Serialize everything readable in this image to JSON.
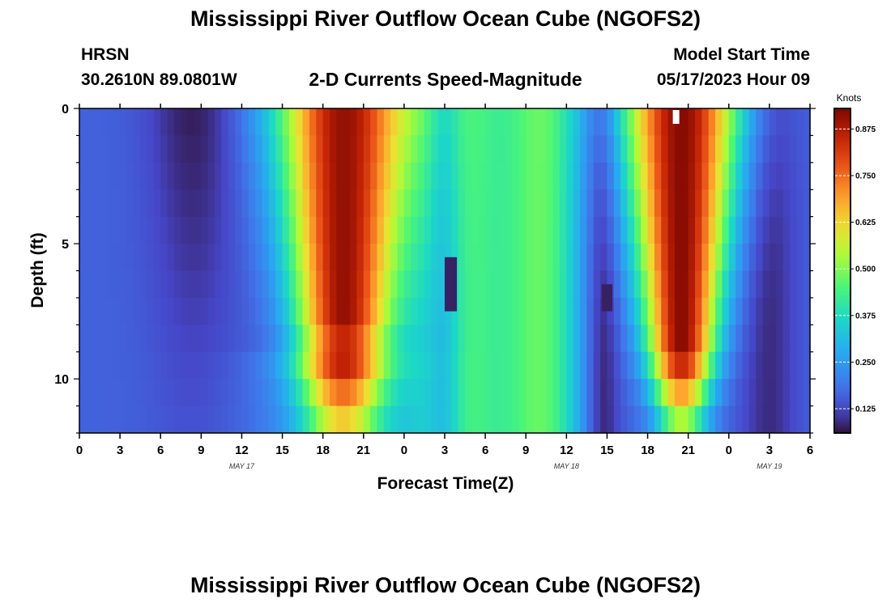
{
  "page": {
    "title": "Mississippi River Outflow Ocean Cube (NGOFS2)",
    "station": "HRSN",
    "coords": "30.2610N  89.0801W",
    "model_start_label": "Model Start Time",
    "model_start_value": "05/17/2023 Hour 09",
    "footer_title": "Mississippi River Outflow Ocean Cube (NGOFS2)"
  },
  "chart_data": {
    "type": "heatmap",
    "title": "2-D Currents Speed-Magnitude",
    "xlabel": "Forecast Time(Z)",
    "ylabel": "Depth (ft)",
    "x_start_hour": 0,
    "x_end_hour": 54,
    "x_tick_labels": [
      "0",
      "3",
      "6",
      "9",
      "12",
      "15",
      "18",
      "21",
      "0",
      "3",
      "6",
      "9",
      "12",
      "15",
      "18",
      "21",
      "0",
      "3",
      "6"
    ],
    "date_labels": [
      {
        "text": "MAY 17",
        "hour": 12
      },
      {
        "text": "MAY 18",
        "hour": 36
      },
      {
        "text": "MAY 19",
        "hour": 51
      }
    ],
    "y_range": [
      0,
      12
    ],
    "y_tick_labels": [
      "0",
      "5",
      "10"
    ],
    "colorbar": {
      "unit": "Knots",
      "range": [
        0.06,
        0.93
      ],
      "tick_labels": [
        "0.875",
        "0.750",
        "0.625",
        "0.500",
        "0.375",
        "0.250",
        "0.125"
      ]
    },
    "depth_layers": [
      0.5,
      1.5,
      2.5,
      3.5,
      4.5,
      5.5,
      6.5,
      7.5,
      8.5,
      9.5,
      10.5,
      11.5
    ],
    "marker_hour": 44.1
  }
}
